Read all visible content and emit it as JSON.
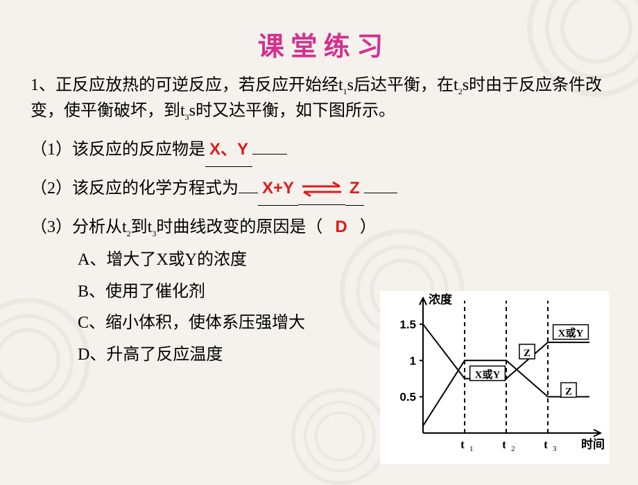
{
  "title": "课 堂 练 习",
  "intro_parts": {
    "p1": "1、正反应放热的可逆反应，若反应开始经t",
    "s1": "1",
    "p2": "s后达平衡，在t",
    "s2": "2",
    "p3": "s时由于反应条件改变，使平衡破坏，到t",
    "s3": "3",
    "p4": "s时又达平衡，如下图所示。"
  },
  "q1": {
    "label": "（1）该反应的反应物是",
    "answer": "X、Y"
  },
  "q2": {
    "label": "（2）该反应的化学方程式为",
    "lhs": "X+Y",
    "rhs": "Z"
  },
  "q3": {
    "pre": "（3）分析从t",
    "s1": "2",
    "mid": "到t",
    "s2": "3",
    "post": "时曲线改变的原因是（",
    "answer": "D",
    "close": "）"
  },
  "options": {
    "A": "A、增大了X或Y的浓度",
    "B": "B、使用了催化剂",
    "C": "C、缩小体积，使体系压强增大",
    "D": "D、升高了反应温度"
  },
  "chart": {
    "ylabel": "浓度",
    "xlabel": "时间",
    "yticks": [
      "1.5",
      "1",
      "0.5"
    ],
    "ytick_vals": [
      1.5,
      1.0,
      0.5
    ],
    "xticks": [
      "t",
      "t",
      "t"
    ],
    "xtick_subs": [
      "1",
      "2",
      "3"
    ],
    "xtick_vals": [
      1.0,
      2.0,
      3.0
    ],
    "topSeriesLabel": "X或Y",
    "midSeriesLabel1": "Z",
    "midSeriesLabel2": "X或Y",
    "lowSeriesLabel": "Z",
    "background": "#ffffff",
    "axis_color": "#000000",
    "line_color": "#000000",
    "line_width": 2,
    "dash_color": "#000000",
    "series": {
      "XY": [
        [
          0,
          1.5
        ],
        [
          1,
          0.75
        ],
        [
          2,
          0.75
        ],
        [
          3,
          1.25
        ],
        [
          4,
          1.25
        ]
      ],
      "Z": [
        [
          0,
          0.1
        ],
        [
          1,
          1.0
        ],
        [
          2,
          1.0
        ],
        [
          3,
          0.5
        ],
        [
          4,
          0.5
        ]
      ]
    },
    "ylim": [
      0,
      1.7
    ],
    "xlim": [
      0,
      4.0
    ]
  }
}
